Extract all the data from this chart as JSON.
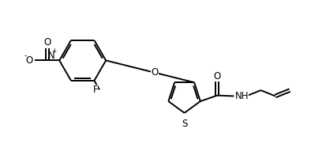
{
  "background_color": "#ffffff",
  "line_color": "#000000",
  "line_width": 1.4,
  "font_size": 8.5,
  "figsize": [
    4.14,
    2.06
  ],
  "dpi": 100,
  "xlim": [
    0,
    10
  ],
  "ylim": [
    0,
    5
  ]
}
